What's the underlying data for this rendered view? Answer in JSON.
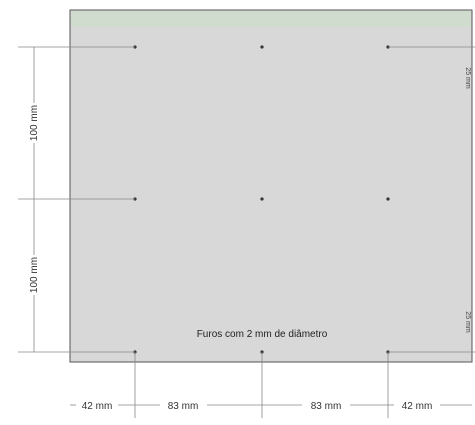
{
  "plate": {
    "fill_color": "#d8d8d8",
    "top_strip_color": "#cfdcce",
    "border_color": "#555555"
  },
  "holes": {
    "note": "Furos com 2 mm de diâmetro",
    "rows": 3,
    "cols": 3
  },
  "dimensions": {
    "left_vertical": [
      "100 mm",
      "100 mm"
    ],
    "bottom_horizontal": [
      "42 mm",
      "83 mm",
      "83 mm",
      "42 mm"
    ],
    "right_top": "25 mm",
    "right_bottom": "25 mm"
  },
  "colors": {
    "dimension_line": "#888888",
    "hole": "#333333"
  }
}
